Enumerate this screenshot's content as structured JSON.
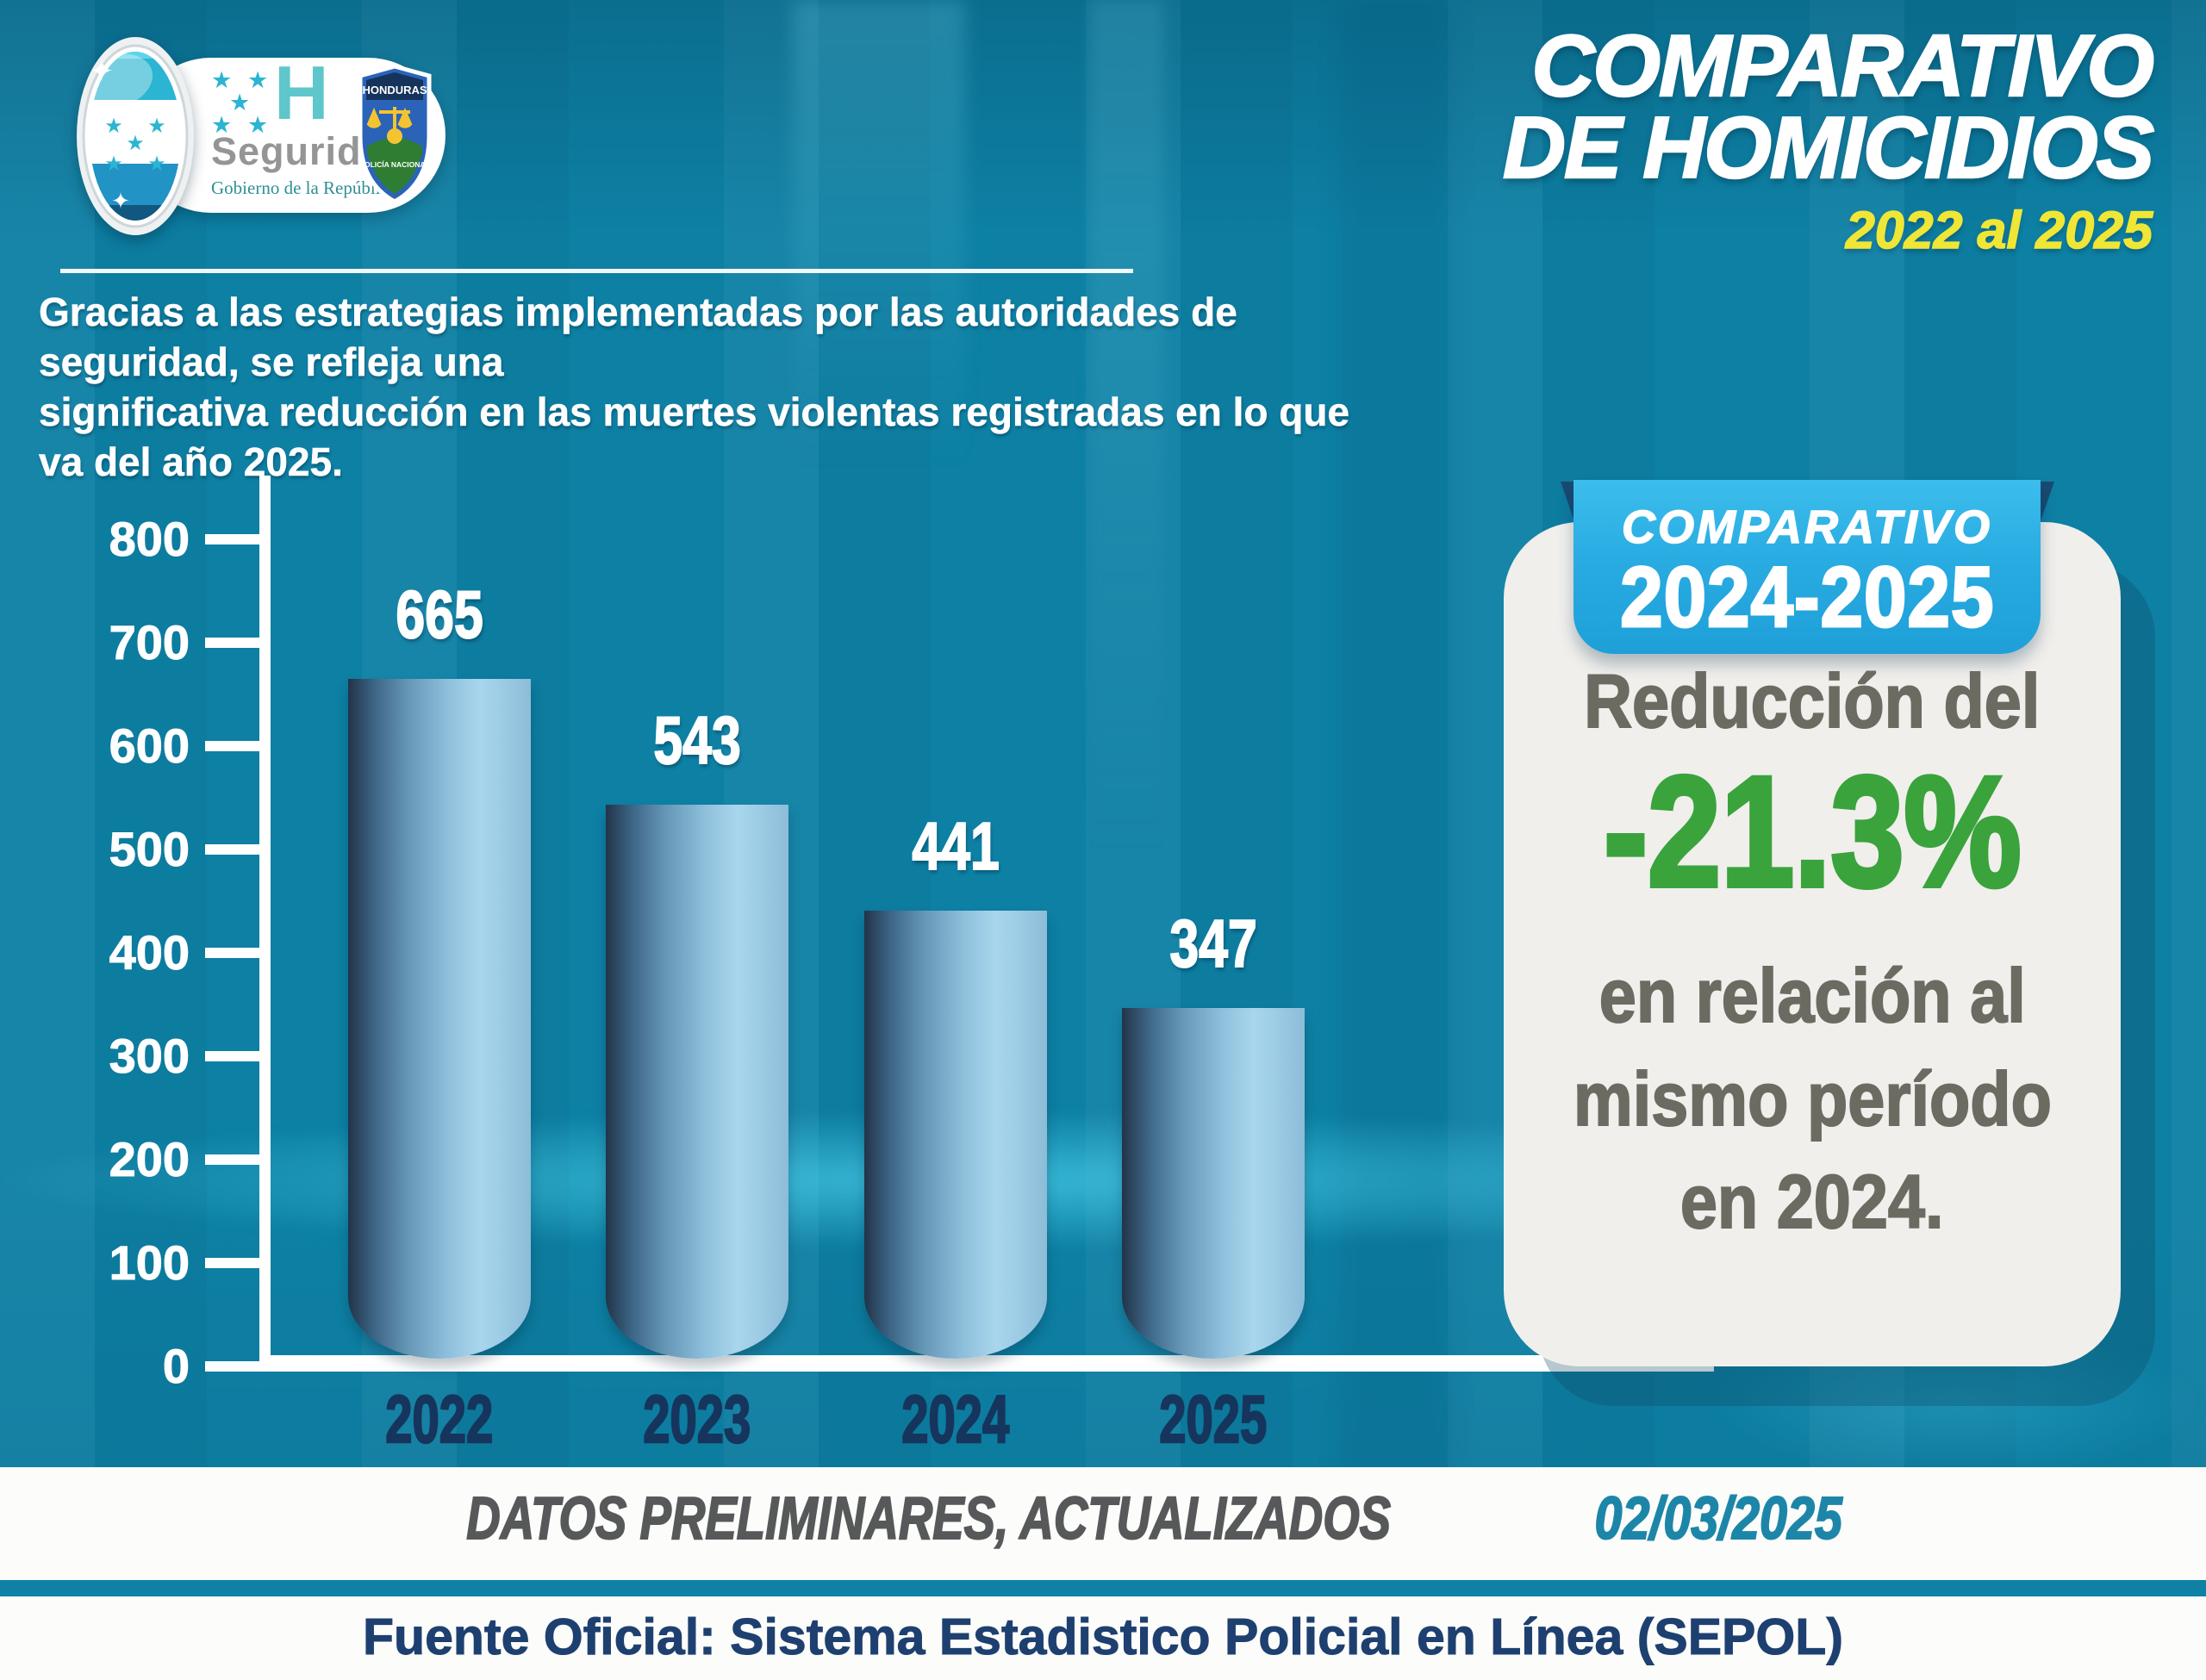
{
  "header": {
    "gov_logo": {
      "h_letter": "H",
      "name": "Seguridad",
      "subname": "Gobierno de la República"
    },
    "police_shield": {
      "country": "HONDURAS",
      "institution": "POLICÍA NACIONAL"
    },
    "title_line1": "COMPARATIVO",
    "title_line2": "DE HOMICIDIOS",
    "subtitle": "2022 al 2025"
  },
  "intro": "Gracias a las estrategias implementadas por las autoridades de seguridad, se refleja una\nsignificativa reducción en las muertes violentas registradas en lo que va del año 2025.",
  "chart_data": {
    "type": "bar",
    "categories": [
      "2022",
      "2023",
      "2024",
      "2025"
    ],
    "values": [
      665,
      543,
      441,
      347
    ],
    "bar_labels": [
      "665",
      "543",
      "441",
      "347"
    ],
    "title": "COMPARATIVO DE HOMICIDIOS 2022 al 2025",
    "xlabel": "",
    "ylabel": "",
    "ylim": [
      0,
      800
    ],
    "ytick_interval": 100,
    "grid": false,
    "legend": "none",
    "bar_color_gradient": [
      "#223449",
      "#8fc0dc",
      "#a9d6ec"
    ]
  },
  "panel": {
    "ribbon_label": "COMPARATIVO",
    "ribbon_years": "2024-2025",
    "line1": "Reducción del",
    "percent": "-21.3%",
    "line2": "en relación al",
    "line3": "mismo período",
    "line4": "en 2024."
  },
  "footer": {
    "preliminary": "DATOS PRELIMINARES, ACTUALIZADOS",
    "date": "02/03/2025",
    "source": "Fuente Oficial: Sistema Estadistico Policial en Línea (SEPOL)"
  },
  "colors": {
    "background_teal": "#0d80a4",
    "ribbon_blue": "#29abe2",
    "subtitle_yellow": "#f0e636",
    "percent_green": "#3aa33c",
    "year_navy": "#16355d",
    "card_gray_text": "#6b6b62",
    "footer_navy": "#1e4070",
    "date_teal": "#1d86a8"
  }
}
